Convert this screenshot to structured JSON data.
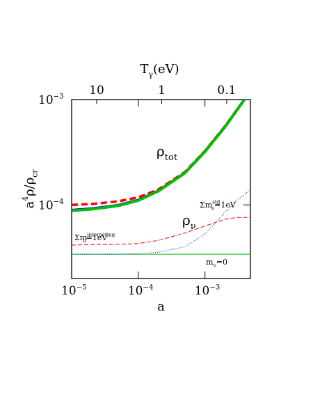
{
  "chart_data": {
    "type": "line",
    "xlabel": "a",
    "ylabel": {
      "pre": "a",
      "sup": "4",
      "mid": "ρ/ρ",
      "sub": "cr"
    },
    "x2label": {
      "base": "T",
      "sub": "γ",
      "rest": "(eV)"
    },
    "xscale": "log",
    "yscale": "log",
    "xlim": [
      1e-05,
      0.0048
    ],
    "ylim": [
      2e-05,
      0.001
    ],
    "x2lim": [
      24.3,
      0.0432
    ],
    "xticks": [
      {
        "value": 1e-05,
        "label": "10",
        "exp": "−5"
      },
      {
        "value": 0.0001,
        "label": "10",
        "exp": "−4"
      },
      {
        "value": 0.001,
        "label": "10",
        "exp": "−3"
      }
    ],
    "yticks": [
      {
        "value": 0.0001,
        "label": "10",
        "exp": "−4"
      },
      {
        "value": 0.001,
        "label": "10",
        "exp": "−3"
      }
    ],
    "x2ticks": [
      10,
      1,
      0.1
    ],
    "x": [
      1e-05,
      2e-05,
      5e-05,
      0.0001,
      0.0002,
      0.0005,
      0.001,
      0.002,
      0.003,
      0.0039,
      0.0048
    ],
    "series": [
      {
        "color": "#0000ff",
        "style": "thick-dotted",
        "values": [
          8.9e-05,
          9.2e-05,
          9.9e-05,
          0.000111,
          0.000136,
          0.000201,
          0.000322,
          0.000552,
          0.00079,
          0.001,
          null
        ]
      },
      {
        "color": "#ff0000",
        "style": "thick-dashed",
        "values": [
          0.0001,
          0.000102,
          0.000108,
          0.000118,
          0.00014,
          0.000205,
          0.000325,
          0.00056,
          0.0008,
          0.001,
          null
        ]
      },
      {
        "color": "#00c000",
        "style": "thick-dotted",
        "values": [
          8.8e-05,
          9.1e-05,
          9.8e-05,
          0.00011,
          0.000135,
          0.0002,
          0.00032,
          0.00055,
          0.00079,
          0.001,
          null
        ]
      },
      {
        "color": "#00c000",
        "style": "solid",
        "values": [
          3.4e-05,
          3.4e-05,
          3.4e-05,
          3.4e-05,
          3.4e-05,
          3.4e-05,
          3.4e-05,
          3.4e-05,
          3.4e-05,
          3.4e-05,
          3.4e-05
        ]
      },
      {
        "color": "#ff0000",
        "style": "dashed",
        "values": [
          4.15e-05,
          4.2e-05,
          4.22e-05,
          4.3e-05,
          4.6e-05,
          5.4e-05,
          6.3e-05,
          7.3e-05,
          7.6e-05,
          7.6e-05,
          7.6e-05
        ]
      },
      {
        "color": "#0000ff",
        "style": "dotted",
        "values": [
          3.4e-05,
          3.4e-05,
          3.4e-05,
          3.42e-05,
          3.55e-05,
          4e-05,
          5.3e-05,
          8.5e-05,
          0.00011,
          0.000125,
          0.00014
        ]
      }
    ],
    "annotations": [
      {
        "base": "ρ",
        "sub": "tot",
        "color": "#000000"
      },
      {
        "base": "ρ",
        "sub": "ν",
        "color": "#000000"
      },
      {
        "base": "Σm",
        "sub": "ν",
        "sup": "std",
        "rest": "=1eV",
        "color": "#0000ff"
      },
      {
        "base": "Σm",
        "sub": "ν",
        "sup": "interacting",
        "rest": "=1eV",
        "color": "#ff0000"
      },
      {
        "base": "m",
        "sub": "ν",
        "rest": "=0",
        "color": "#00c000"
      }
    ]
  }
}
